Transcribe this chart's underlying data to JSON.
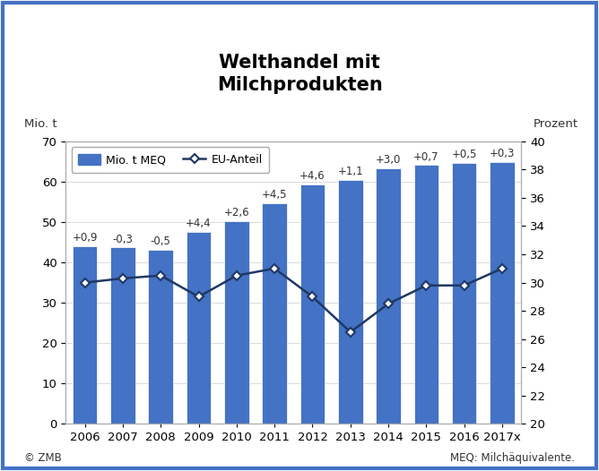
{
  "title": "Welthandel mit\nMilchprodukten",
  "ylabel_left": "Mio. t",
  "ylabel_right": "Prozent",
  "categories": [
    "2006",
    "2007",
    "2008",
    "2009",
    "2010",
    "2011",
    "2012",
    "2013",
    "2014",
    "2015",
    "2016",
    "2017x"
  ],
  "bar_values": [
    44.0,
    43.7,
    43.2,
    47.6,
    50.2,
    54.7,
    59.3,
    60.4,
    63.4,
    64.1,
    64.6,
    64.9
  ],
  "bar_color": "#4472C4",
  "bar_edgecolor": "#ffffff",
  "line_values": [
    30.0,
    30.3,
    30.5,
    29.0,
    30.5,
    31.0,
    29.0,
    26.5,
    28.5,
    29.8,
    29.8,
    31.0
  ],
  "line_color": "#1F3864",
  "annotations": [
    "+0,9",
    "-0,3",
    "-0,5",
    "+4,4",
    "+2,6",
    "+4,5",
    "+4,6",
    "+1,1",
    "+3,0",
    "+0,7",
    "+0,5",
    "+0,3"
  ],
  "ylim_left": [
    0,
    70
  ],
  "ylim_right": [
    20,
    40
  ],
  "yticks_left": [
    0,
    10,
    20,
    30,
    40,
    50,
    60,
    70
  ],
  "yticks_right": [
    20,
    22,
    24,
    26,
    28,
    30,
    32,
    34,
    36,
    38,
    40
  ],
  "background_color": "#ffffff",
  "border_color": "#4472C4",
  "footer_left": "© ZMB",
  "footer_right": "MEQ: Milchäquivalente.",
  "legend_bar_label": "Mio. t MEQ",
  "legend_line_label": "EU-Anteil",
  "title_fontsize": 15,
  "axis_fontsize": 9.5,
  "annotation_fontsize": 8.5,
  "legend_fontsize": 9
}
